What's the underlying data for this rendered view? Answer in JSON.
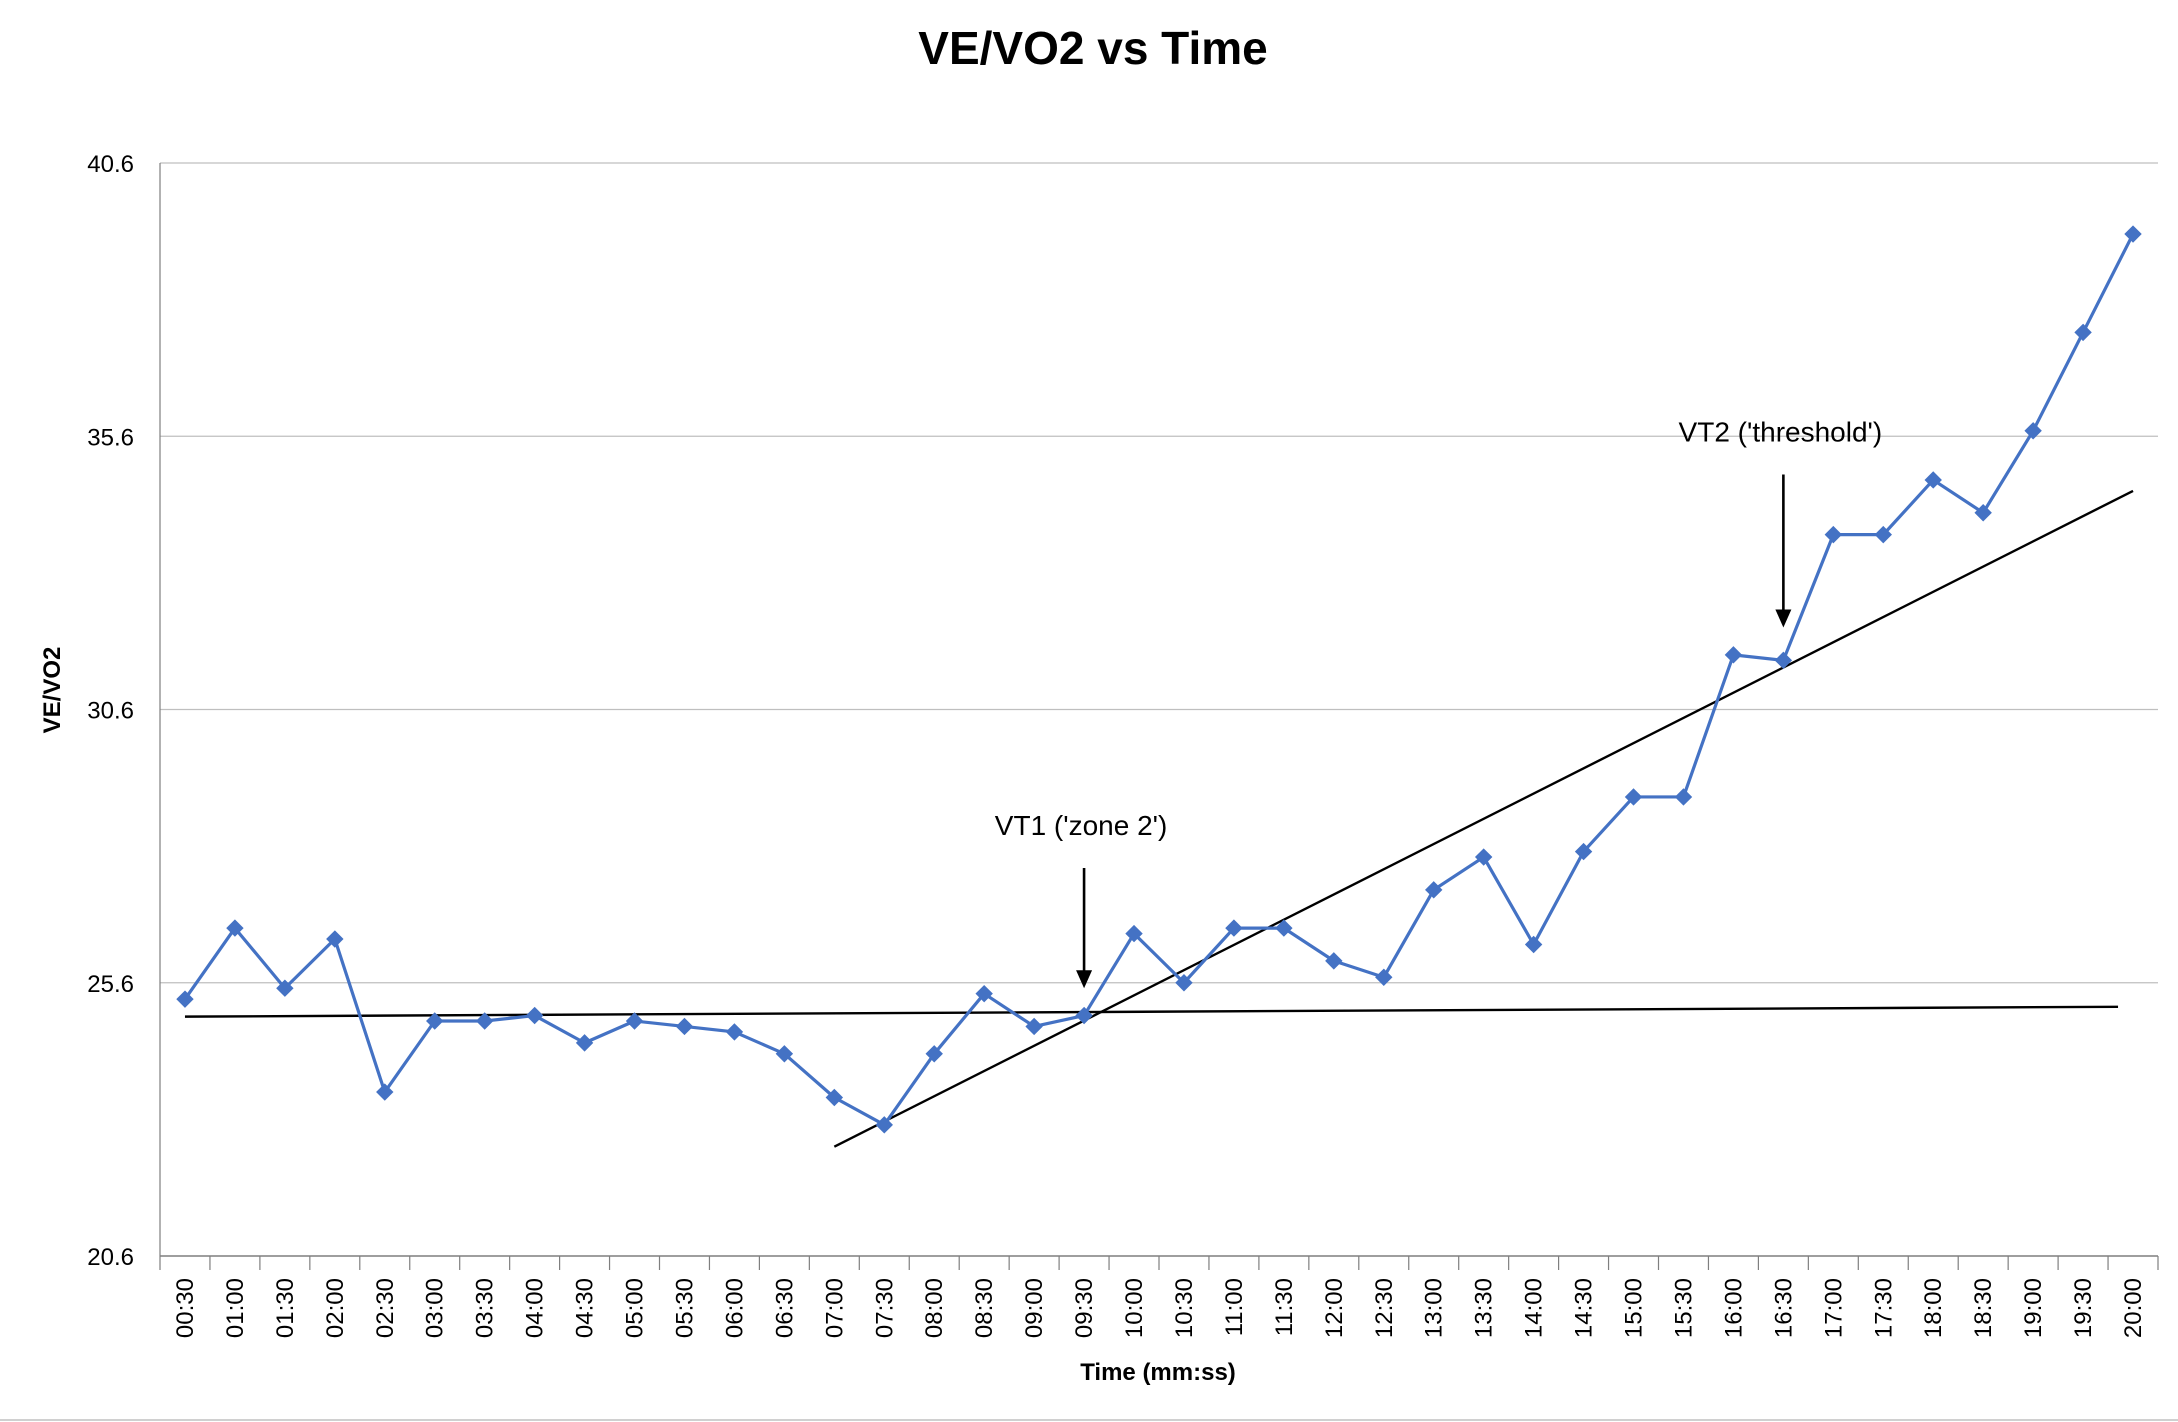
{
  "chart_data": {
    "type": "line",
    "title": "VE/VO2 vs Time",
    "xlabel": "Time (mm:ss)",
    "ylabel": "VE/VO2",
    "ylim": [
      20.6,
      40.6
    ],
    "yticks": [
      "20.6",
      "25.6",
      "30.6",
      "35.6",
      "40.6"
    ],
    "grid": true,
    "legend": "none",
    "categories": [
      "00:30",
      "01:00",
      "01:30",
      "02:00",
      "02:30",
      "03:00",
      "03:30",
      "04:00",
      "04:30",
      "05:00",
      "05:30",
      "06:00",
      "06:30",
      "07:00",
      "07:30",
      "08:00",
      "08:30",
      "09:00",
      "09:30",
      "10:00",
      "10:30",
      "11:00",
      "11:30",
      "12:00",
      "12:30",
      "13:00",
      "13:30",
      "14:00",
      "14:30",
      "15:00",
      "15:30",
      "16:00",
      "16:30",
      "17:00",
      "17:30",
      "18:00",
      "18:30",
      "19:00",
      "19:30",
      "20:00"
    ],
    "series": [
      {
        "name": "VE/VO2",
        "color": "#4472C4",
        "values": [
          25.3,
          26.6,
          25.5,
          26.4,
          23.6,
          24.9,
          24.9,
          25.0,
          24.5,
          24.9,
          24.8,
          24.7,
          24.3,
          23.5,
          23.0,
          24.3,
          25.4,
          24.8,
          25.0,
          26.5,
          25.6,
          26.6,
          26.6,
          26.0,
          25.7,
          27.3,
          27.9,
          26.3,
          28.0,
          29.0,
          29.0,
          31.6,
          31.5,
          33.8,
          33.8,
          34.8,
          34.2,
          35.7,
          37.5,
          39.3
        ]
      }
    ],
    "trendlines": [
      {
        "name": "baseline-fit",
        "color": "#000000",
        "x_start": 0.0,
        "y_start": 24.98,
        "x_end": 38.7,
        "y_end": 25.16
      },
      {
        "name": "slope-fit",
        "color": "#000000",
        "x_start": 13.0,
        "y_start": 22.6,
        "x_end": 39.0,
        "y_end": 34.6
      }
    ],
    "annotations": [
      {
        "label": "VT1 ('zone 2')",
        "x_index": 18,
        "text_y": 28.3,
        "arrow_from_y": 27.7,
        "arrow_to_y": 25.5
      },
      {
        "label": "VT2 ('threshold')",
        "x_index": 32,
        "text_y": 35.5,
        "arrow_from_y": 34.9,
        "arrow_to_y": 32.1
      }
    ]
  }
}
